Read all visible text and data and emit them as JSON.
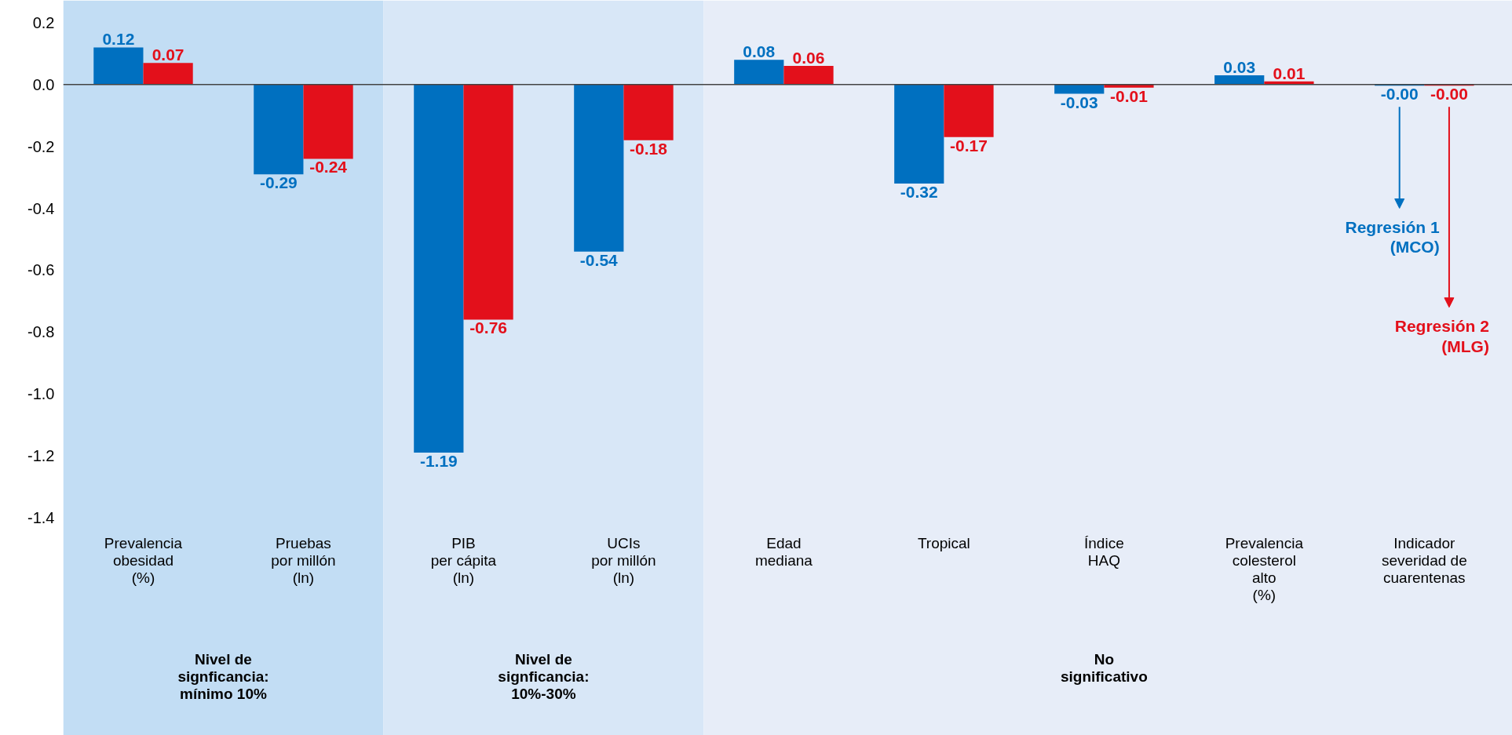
{
  "chart_data": {
    "type": "bar",
    "categories": [
      "Prevalencia\nobesidad\n(%)",
      "Pruebas\npor millón\n(ln)",
      "PIB\nper cápita\n(ln)",
      "UCIs\npor millón\n(ln)",
      "Edad\nmediana",
      "Tropical",
      "Índice\nHAQ",
      "Prevalencia\ncolesterol\nalto\n(%)",
      "Indicador\nseveridad de\ncuarentenas"
    ],
    "series": [
      {
        "name": "Regresión 1\n(MCO)",
        "color": "#0070c0",
        "values": [
          0.12,
          -0.29,
          -1.19,
          -0.54,
          0.08,
          -0.32,
          -0.03,
          0.03,
          -0.004
        ],
        "value_labels": [
          "0.12",
          "-0.29",
          "-1.19",
          "-0.54",
          "0.08",
          "-0.32",
          "-0.03",
          "0.03",
          "-0.00"
        ]
      },
      {
        "name": "Regresión 2\n(MLG)",
        "color": "#e3101b",
        "values": [
          0.07,
          -0.24,
          -0.76,
          -0.18,
          0.06,
          -0.17,
          -0.01,
          0.01,
          -0.004
        ],
        "value_labels": [
          "0.07",
          "-0.24",
          "-0.76",
          "-0.18",
          "0.06",
          "-0.17",
          "-0.01",
          "0.01",
          "-0.00"
        ]
      }
    ],
    "ylim": [
      -1.4,
      0.2
    ],
    "yticks": [
      0.2,
      {
        "value": 0,
        "label": "0.0"
      },
      -0.2,
      -0.4,
      -0.6,
      -0.8,
      {
        "value": -1,
        "label": "-1.0"
      },
      -1.2,
      -1.4
    ],
    "grid": false,
    "legend": "right",
    "ref_lines": [
      {
        "axis": "y",
        "value": 0,
        "color": "#444444"
      }
    ],
    "bands": [
      {
        "axis": "x",
        "from": "Prevalencia\nobesidad\n(%)",
        "to": "Pruebas\npor millón\n(ln)",
        "label": "Nivel de\nsignficancia:\nmínimo 10%",
        "color": "#c2ddf4"
      },
      {
        "axis": "x",
        "from": "PIB\nper cápita\n(ln)",
        "to": "UCIs\npor millón\n(ln)",
        "label": "Nivel de\nsignficancia:\n10%-30%",
        "color": "#d8e7f7"
      },
      {
        "axis": "x",
        "from": "Edad\nmediana",
        "to": "Indicador\nseveridad de\ncuarentenas",
        "label": "No\nsignificativo",
        "color": "#e7edf8"
      }
    ]
  }
}
